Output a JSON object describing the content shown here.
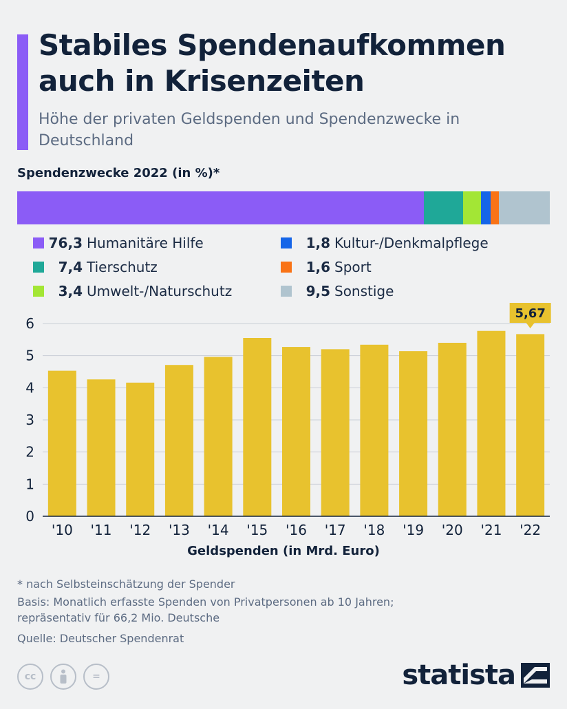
{
  "header": {
    "title": "Stabiles Spendenaufkommen auch in Krisenzeiten",
    "subtitle": "Höhe der privaten Geldspenden und Spendenzwecke in Deutschland",
    "accent_color": "#8b5cf6"
  },
  "breakdown": {
    "title": "Spendenzwecke 2022 (in %)*",
    "segments": [
      {
        "label": "Humanitäre Hilfe",
        "value_text": "76,3",
        "value": 76.3,
        "color": "#8b5cf6"
      },
      {
        "label": "Tierschutz",
        "value_text": "7,4",
        "value": 7.4,
        "color": "#1fa898"
      },
      {
        "label": "Umwelt-/Naturschutz",
        "value_text": "3,4",
        "value": 3.4,
        "color": "#a3e635"
      },
      {
        "label": "Kultur-/Denkmalpflege",
        "value_text": "1,8",
        "value": 1.8,
        "color": "#1565e8"
      },
      {
        "label": "Sport",
        "value_text": "1,6",
        "value": 1.6,
        "color": "#f97316"
      },
      {
        "label": "Sonstige",
        "value_text": "9,5",
        "value": 9.5,
        "color": "#b0c4cf"
      }
    ]
  },
  "chart_data": {
    "type": "bar",
    "categories": [
      "'10",
      "'11",
      "'12",
      "'13",
      "'14",
      "'15",
      "'16",
      "'17",
      "'18",
      "'19",
      "'20",
      "'21",
      "'22"
    ],
    "values": [
      4.53,
      4.26,
      4.16,
      4.71,
      4.96,
      5.55,
      5.27,
      5.2,
      5.34,
      5.14,
      5.4,
      5.77,
      5.67
    ],
    "highlight": {
      "category": "'22",
      "label": "5,67"
    },
    "xlabel": "Geldspenden (in Mrd. Euro)",
    "ylabel": "",
    "ylim": [
      0,
      6
    ],
    "yticks": [
      "0",
      "1",
      "2",
      "3",
      "4",
      "5",
      "6"
    ],
    "bar_color": "#e8c22e",
    "grid": true
  },
  "footer": {
    "note": "* nach Selbsteinschätzung der Spender",
    "basis_line1": "Basis: Monatlich erfasste Spenden von Privatpersonen ab 10 Jahren;",
    "basis_line2": "repräsentativ für 66,2 Mio. Deutsche",
    "source": "Quelle: Deutscher Spendenrat"
  },
  "brand": {
    "name": "statista"
  },
  "license_icons": [
    {
      "icon": "cc-icon",
      "text": "cc"
    },
    {
      "icon": "by-icon",
      "text": ""
    },
    {
      "icon": "nd-icon",
      "text": "="
    }
  ]
}
